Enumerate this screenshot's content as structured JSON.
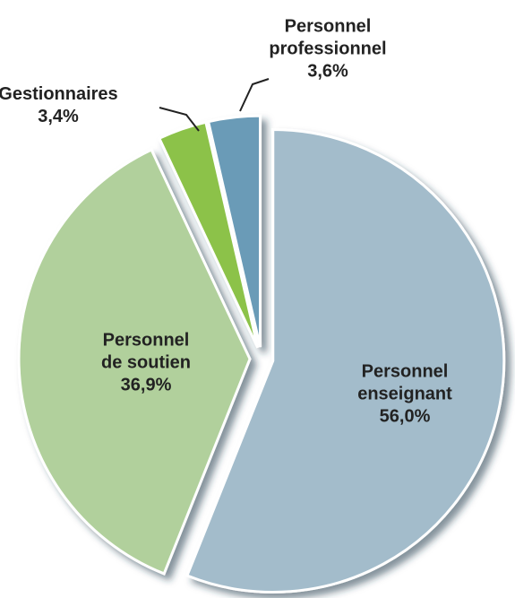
{
  "chart_data": {
    "type": "pie",
    "categories": [
      "Personnel enseignant",
      "Personnel de soutien",
      "Gestionnaires",
      "Personnel professionnel"
    ],
    "values": [
      56.0,
      36.9,
      3.4,
      3.6
    ],
    "value_labels": [
      "56,0%",
      "36,9%",
      "3,4%",
      "3,6%"
    ],
    "colors": [
      "#a3bccb",
      "#b1d09c",
      "#8cc24a",
      "#6b9bb7"
    ]
  }
}
